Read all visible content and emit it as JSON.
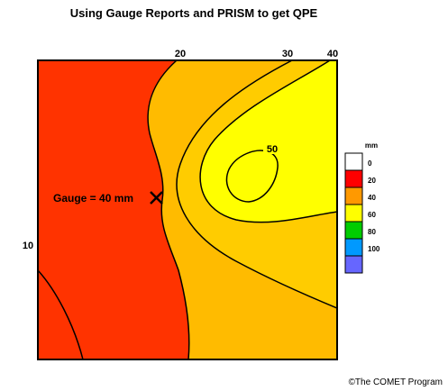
{
  "title": "Using Gauge Reports and PRISM to get QPE",
  "credit": "©The COMET Program",
  "contours": {
    "label_10": "10",
    "label_20": "20",
    "label_30": "30",
    "label_40": "40",
    "label_50": "50"
  },
  "gauge": {
    "label": "Gauge = 40 mm",
    "marker": "x-icon"
  },
  "legend": {
    "unit": "mm",
    "bins": [
      {
        "label": "0",
        "color": "#ffffff"
      },
      {
        "label": "20",
        "color": "#ff0000"
      },
      {
        "label": "40",
        "color": "#ff9900"
      },
      {
        "label": "60",
        "color": "#ffff00"
      },
      {
        "label": "80",
        "color": "#00cc00"
      },
      {
        "label": "100",
        "color": "#0099ff"
      },
      {
        "label": "",
        "color": "#6666ff"
      }
    ]
  },
  "map_colors": {
    "zone_10_20": "#ff3300",
    "zone_20_30": "#ffbb00",
    "zone_30_40": "#ffcc00",
    "zone_40_plus": "#ffff00"
  }
}
